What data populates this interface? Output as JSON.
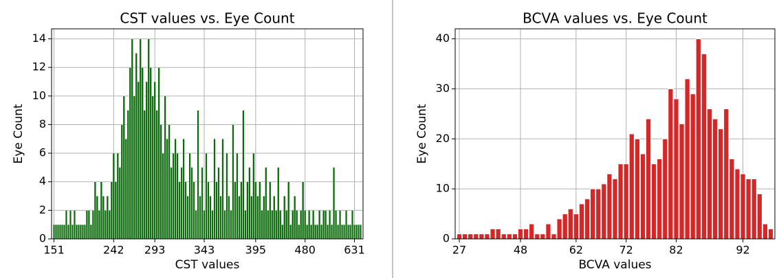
{
  "chart_data": [
    {
      "type": "bar",
      "title": "CST values vs. Eye Count",
      "x_label": "CST values",
      "y_label": "Eye Count",
      "color": "#0b6b0b",
      "grid": true,
      "ylim": [
        0,
        14.7
      ],
      "yticks": [
        0,
        2,
        4,
        6,
        8,
        10,
        12,
        14
      ],
      "categories": [
        "151",
        null,
        null,
        null,
        null,
        null,
        null,
        null,
        null,
        null,
        null,
        null,
        null,
        null,
        null,
        null,
        null,
        null,
        null,
        null,
        null,
        null,
        null,
        null,
        null,
        null,
        null,
        null,
        null,
        "242",
        null,
        null,
        null,
        null,
        null,
        null,
        null,
        null,
        null,
        null,
        null,
        null,
        null,
        null,
        null,
        null,
        null,
        null,
        null,
        "293",
        null,
        null,
        null,
        null,
        null,
        null,
        null,
        null,
        null,
        null,
        null,
        null,
        null,
        null,
        null,
        null,
        null,
        null,
        null,
        null,
        null,
        null,
        null,
        "343",
        null,
        null,
        null,
        null,
        null,
        null,
        null,
        null,
        null,
        null,
        null,
        null,
        null,
        null,
        null,
        null,
        null,
        null,
        null,
        null,
        null,
        null,
        null,
        null,
        "395",
        null,
        null,
        null,
        null,
        null,
        null,
        null,
        null,
        null,
        null,
        null,
        null,
        null,
        null,
        null,
        null,
        null,
        null,
        null,
        null,
        null,
        null,
        null,
        "480",
        null,
        null,
        null,
        null,
        null,
        null,
        null,
        null,
        null,
        null,
        null,
        null,
        null,
        null,
        null,
        null,
        null,
        null,
        null,
        null,
        null,
        null,
        null,
        "631",
        null,
        null,
        null
      ],
      "values": [
        1,
        1,
        1,
        1,
        1,
        1,
        2,
        1,
        2,
        1,
        2,
        1,
        1,
        1,
        1,
        1,
        2,
        2,
        1,
        2,
        4,
        3,
        2,
        4,
        3,
        2,
        3,
        2,
        4,
        6,
        4,
        6,
        5,
        8,
        10,
        7,
        9,
        12,
        14,
        10,
        13,
        11,
        14,
        12,
        9,
        11,
        14,
        12,
        10,
        11,
        9,
        12,
        8,
        6,
        10,
        7,
        8,
        5,
        6,
        7,
        6,
        4,
        5,
        7,
        4,
        3,
        6,
        5,
        4,
        2,
        9,
        3,
        5,
        2,
        6,
        4,
        3,
        2,
        7,
        4,
        5,
        3,
        7,
        2,
        6,
        3,
        2,
        8,
        4,
        6,
        3,
        4,
        9,
        2,
        4,
        5,
        3,
        6,
        4,
        3,
        4,
        2,
        3,
        5,
        2,
        4,
        2,
        3,
        2,
        5,
        2,
        1,
        3,
        2,
        4,
        1,
        2,
        3,
        2,
        1,
        2,
        4,
        2,
        1,
        2,
        1,
        2,
        1,
        1,
        2,
        1,
        2,
        2,
        1,
        2,
        1,
        5,
        2,
        1,
        2,
        1,
        1,
        2,
        1,
        1,
        2,
        1,
        1,
        1,
        1
      ]
    },
    {
      "type": "bar",
      "title": "BCVA values vs. Eye Count",
      "x_label": "BCVA values",
      "y_label": "Eye Count",
      "color": "#d62728",
      "grid": true,
      "ylim": [
        0,
        42
      ],
      "yticks": [
        0,
        10,
        20,
        30,
        40
      ],
      "categories": [
        "27",
        null,
        null,
        null,
        null,
        null,
        null,
        null,
        null,
        null,
        null,
        "48",
        null,
        null,
        null,
        null,
        null,
        null,
        null,
        null,
        null,
        "62",
        null,
        null,
        null,
        null,
        null,
        null,
        null,
        null,
        "72",
        null,
        null,
        null,
        null,
        null,
        null,
        null,
        null,
        "82",
        null,
        null,
        null,
        null,
        null,
        null,
        null,
        null,
        null,
        null,
        null,
        "92",
        null,
        null,
        null,
        null,
        null
      ],
      "values": [
        1,
        1,
        1,
        1,
        1,
        1,
        2,
        2,
        1,
        1,
        1,
        2,
        2,
        3,
        1,
        1,
        3,
        1,
        4,
        5,
        6,
        5,
        7,
        8,
        10,
        10,
        11,
        13,
        12,
        15,
        15,
        21,
        20,
        17,
        24,
        15,
        16,
        20,
        30,
        28,
        23,
        32,
        29,
        40,
        37,
        26,
        24,
        22,
        26,
        16,
        14,
        13,
        12,
        12,
        9,
        3,
        2
      ]
    }
  ]
}
